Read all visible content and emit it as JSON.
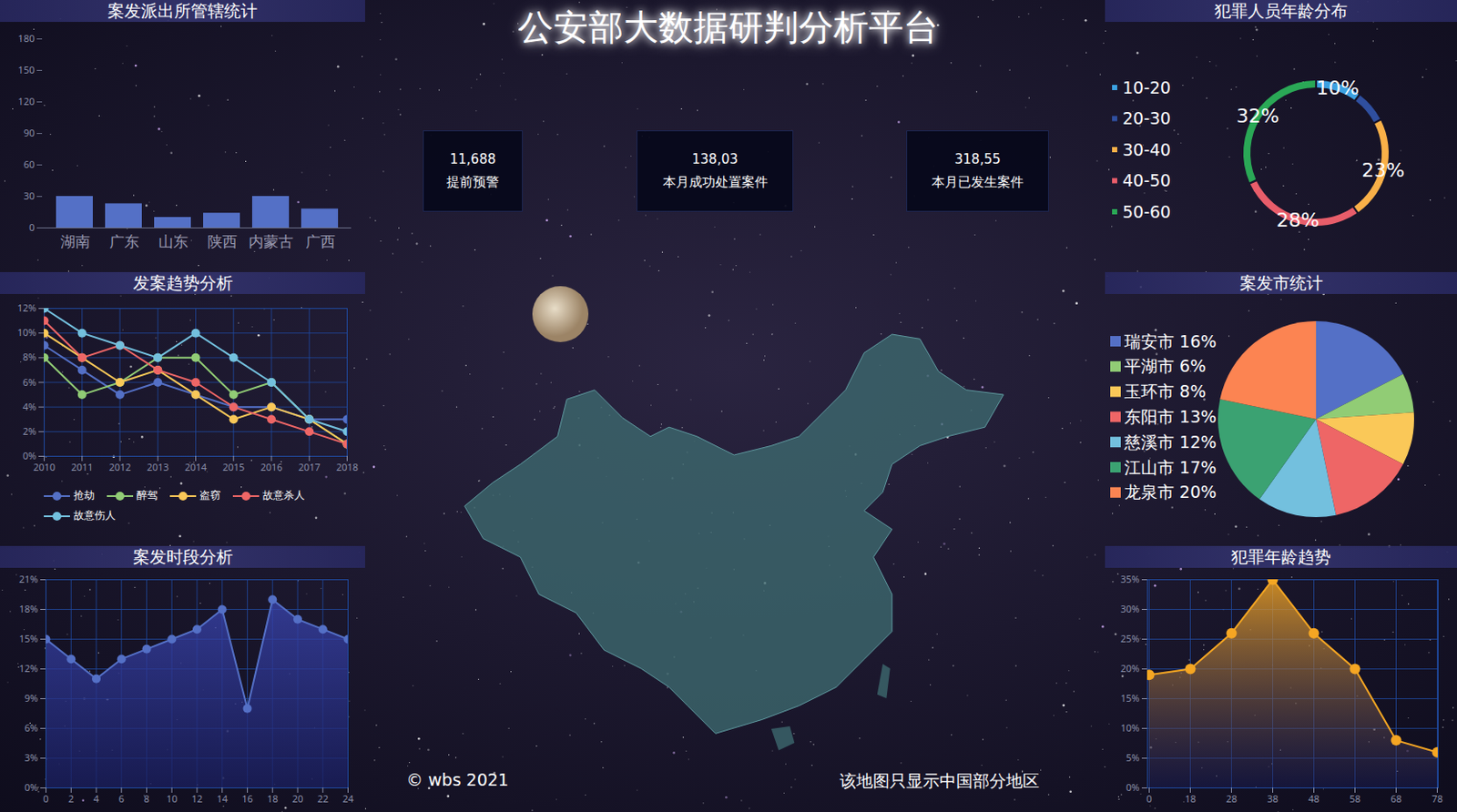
{
  "header": {
    "title": "公安部大数据研判分析平台"
  },
  "kpis": [
    {
      "value": "11,688",
      "label": "提前预警"
    },
    {
      "value": "138,03",
      "label": "本月成功处置案件"
    },
    {
      "value": "318,55",
      "label": "本月已发生案件"
    }
  ],
  "map": {
    "caption": "该地图只显示中国部分地区",
    "copyright": "© wbs 2021"
  },
  "chart_data": [
    {
      "type": "bar",
      "title": "案发派出所管辖统计",
      "categories": [
        "湖南",
        "广东",
        "山东",
        "陕西",
        "内蒙古",
        "广西"
      ],
      "values": [
        30,
        23,
        10,
        14,
        30,
        18
      ],
      "color": "#5470c6",
      "ylim": [
        0,
        180
      ],
      "yticks": [
        0,
        30,
        60,
        90,
        120,
        150,
        180
      ],
      "grid": false
    },
    {
      "type": "line",
      "title": "发案趋势分析",
      "x": [
        2010,
        2011,
        2012,
        2013,
        2014,
        2015,
        2016,
        2017,
        2018
      ],
      "xlim": [
        2010,
        2018
      ],
      "xticks": [
        2010,
        2011,
        2012,
        2013,
        2014,
        2015,
        2016,
        2017,
        2018
      ],
      "series": [
        {
          "name": "抢劫",
          "color": "#5470c6",
          "values": [
            9,
            7,
            5,
            6,
            5,
            4,
            4,
            3,
            3
          ]
        },
        {
          "name": "醉驾",
          "color": "#91cc75",
          "values": [
            8,
            5,
            6,
            8,
            8,
            5,
            6,
            3,
            1
          ]
        },
        {
          "name": "盗窃",
          "color": "#fac858",
          "values": [
            10,
            8,
            6,
            7,
            5,
            3,
            4,
            3,
            1
          ]
        },
        {
          "name": "故意杀人",
          "color": "#ee6666",
          "values": [
            11,
            8,
            9,
            7,
            6,
            4,
            3,
            2,
            1
          ]
        },
        {
          "name": "故意伤人",
          "color": "#73c0de",
          "values": [
            12,
            10,
            9,
            8,
            10,
            8,
            6,
            3,
            2
          ]
        }
      ],
      "ylim": [
        0,
        12
      ],
      "yticks": [
        {
          "value": 0,
          "label": "0%"
        },
        {
          "value": 2,
          "label": "2%"
        },
        {
          "value": 4,
          "label": "4%"
        },
        {
          "value": 6,
          "label": "6%"
        },
        {
          "value": 8,
          "label": "8%"
        },
        {
          "value": 10,
          "label": "10%"
        },
        {
          "value": 12,
          "label": "12%"
        }
      ],
      "grid": true,
      "legend": "bottom",
      "marker": "circle"
    },
    {
      "type": "area",
      "title": "案发时段分析",
      "x": [
        0,
        2,
        4,
        6,
        8,
        10,
        12,
        14,
        16,
        18,
        20,
        22,
        24
      ],
      "values": [
        15,
        13,
        11,
        13,
        14,
        15,
        16,
        18,
        8,
        19,
        17,
        16,
        15
      ],
      "color": "#5470c6",
      "xlim": [
        0,
        24
      ],
      "xticks": [
        0,
        2,
        4,
        6,
        8,
        10,
        12,
        14,
        16,
        18,
        20,
        22,
        24
      ],
      "ylim": [
        0,
        21
      ],
      "yticks": [
        {
          "value": 0,
          "label": "0%"
        },
        {
          "value": 3,
          "label": "3%"
        },
        {
          "value": 6,
          "label": "6%"
        },
        {
          "value": 9,
          "label": "9%"
        },
        {
          "value": 12,
          "label": "12%"
        },
        {
          "value": 15,
          "label": "15%"
        },
        {
          "value": 18,
          "label": "18%"
        },
        {
          "value": 21,
          "label": "21%"
        }
      ],
      "grid": true,
      "marker": "circle"
    },
    {
      "type": "donut",
      "title": "犯罪人员年龄分布",
      "categories": [
        "10-20",
        "20-30",
        "30-40",
        "40-50",
        "50-60"
      ],
      "values": [
        10,
        7,
        23,
        28,
        32
      ],
      "value_labels": [
        "10%",
        null,
        "23%",
        "28%",
        "32%"
      ],
      "colors": [
        "#3ba0e0",
        "#2f4f9f",
        "#f9b048",
        "#e85d6a",
        "#2aa856"
      ],
      "data_labels": true,
      "legend": "left"
    },
    {
      "type": "pie",
      "title": "案发市统计",
      "categories": [
        "瑞安市",
        "平湖市",
        "玉环市",
        "东阳市",
        "慈溪市",
        "江山市",
        "龙泉市"
      ],
      "values": [
        16,
        6,
        8,
        13,
        12,
        17,
        20
      ],
      "value_labels": [
        "16%",
        "6%",
        "8%",
        "13%",
        "12%",
        "17%",
        "20%"
      ],
      "colors": [
        "#5470c6",
        "#91cc75",
        "#fac858",
        "#ee6666",
        "#73c0de",
        "#3ba272",
        "#fc8452"
      ],
      "legend": "left"
    },
    {
      "type": "area",
      "title": "犯罪年龄趋势",
      "categories": [
        "0",
        "18",
        "28",
        "38",
        "48",
        "58",
        "68",
        "78"
      ],
      "values": [
        19,
        20,
        26,
        35,
        26,
        20,
        8,
        6
      ],
      "color": "#f5a623",
      "ylim": [
        0,
        35
      ],
      "yticks": [
        {
          "value": 0,
          "label": "0%"
        },
        {
          "value": 5,
          "label": "5%"
        },
        {
          "value": 10,
          "label": "10%"
        },
        {
          "value": 15,
          "label": "15%"
        },
        {
          "value": 20,
          "label": "20%"
        },
        {
          "value": 25,
          "label": "25%"
        },
        {
          "value": 30,
          "label": "30%"
        },
        {
          "value": 35,
          "label": "35%"
        }
      ],
      "grid": true,
      "marker": "circle"
    }
  ]
}
